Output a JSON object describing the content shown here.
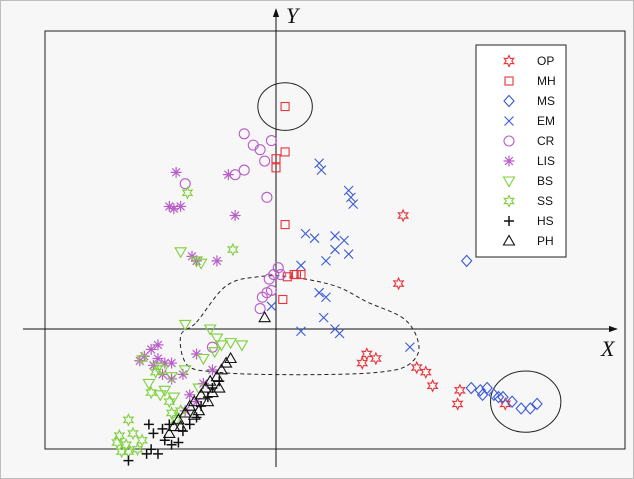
{
  "chart_data": {
    "type": "scatter",
    "title": "",
    "xlabel": "X",
    "ylabel": "Y",
    "xlim": [
      -10.5,
      12.5
    ],
    "ylim": [
      -6,
      14.5
    ],
    "grid": false,
    "legend_position": "top-right",
    "series": [
      {
        "name": "OP",
        "marker": "star6",
        "color": "#e8333a",
        "points": [
          [
            5.6,
            5.0
          ],
          [
            5.4,
            2.0
          ],
          [
            4.0,
            -1.1
          ],
          [
            4.4,
            -1.3
          ],
          [
            3.8,
            -1.5
          ],
          [
            6.2,
            -1.7
          ],
          [
            6.6,
            -1.9
          ],
          [
            6.9,
            -2.5
          ],
          [
            8.1,
            -2.7
          ],
          [
            10.1,
            -3.3
          ],
          [
            8.0,
            -3.3
          ]
        ]
      },
      {
        "name": "MH",
        "marker": "square",
        "color": "#e8333a",
        "points": [
          [
            0.4,
            9.8
          ],
          [
            0.0,
            7.5
          ],
          [
            0.4,
            7.8
          ],
          [
            0.0,
            7.1
          ],
          [
            0.4,
            4.6
          ],
          [
            0.5,
            2.3
          ],
          [
            0.9,
            2.4
          ],
          [
            0.8,
            2.4
          ],
          [
            1.1,
            2.4
          ],
          [
            0.3,
            1.3
          ]
        ]
      },
      {
        "name": "MS",
        "marker": "diamond",
        "color": "#3a5ad8",
        "points": [
          [
            8.4,
            3.0
          ],
          [
            8.6,
            -2.6
          ],
          [
            9.0,
            -2.7
          ],
          [
            9.3,
            -2.6
          ],
          [
            9.6,
            -2.9
          ],
          [
            10.0,
            -3.0
          ],
          [
            10.4,
            -3.2
          ],
          [
            10.8,
            -3.5
          ],
          [
            11.2,
            -3.5
          ],
          [
            11.5,
            -3.3
          ],
          [
            9.1,
            -2.9
          ],
          [
            9.8,
            -3.0
          ]
        ]
      },
      {
        "name": "EM",
        "marker": "x",
        "color": "#3a5ad8",
        "points": [
          [
            1.9,
            7.3
          ],
          [
            2.0,
            7.0
          ],
          [
            3.2,
            6.1
          ],
          [
            3.4,
            5.5
          ],
          [
            3.3,
            5.8
          ],
          [
            1.3,
            4.2
          ],
          [
            1.7,
            4.0
          ],
          [
            2.6,
            4.1
          ],
          [
            3.0,
            3.9
          ],
          [
            2.6,
            3.5
          ],
          [
            2.2,
            3.0
          ],
          [
            1.1,
            2.8
          ],
          [
            2.2,
            1.4
          ],
          [
            1.9,
            1.6
          ],
          [
            -0.2,
            1.0
          ],
          [
            2.1,
            0.5
          ],
          [
            2.6,
            0.0
          ],
          [
            1.1,
            -0.1
          ],
          [
            2.8,
            -0.2
          ],
          [
            5.9,
            -0.8
          ],
          [
            3.2,
            3.3
          ]
        ]
      },
      {
        "name": "CR",
        "marker": "circle",
        "color": "#b85ec8",
        "points": [
          [
            -1.4,
            8.6
          ],
          [
            -1.0,
            8.1
          ],
          [
            -0.2,
            8.3
          ],
          [
            -0.7,
            7.9
          ],
          [
            -0.5,
            7.4
          ],
          [
            -1.4,
            7.0
          ],
          [
            -1.8,
            6.8
          ],
          [
            -4.0,
            6.4
          ],
          [
            -0.4,
            5.8
          ],
          [
            0.1,
            2.7
          ],
          [
            -0.1,
            2.4
          ],
          [
            -0.3,
            2.2
          ],
          [
            -0.4,
            1.6
          ],
          [
            -0.2,
            1.7
          ],
          [
            -0.6,
            1.4
          ],
          [
            -0.7,
            0.9
          ],
          [
            -2.8,
            -0.8
          ],
          [
            0.2,
            2.4
          ]
        ]
      },
      {
        "name": "LIS",
        "marker": "asterisk",
        "color": "#b85ec8",
        "points": [
          [
            -4.4,
            6.9
          ],
          [
            -2.1,
            6.8
          ],
          [
            -4.7,
            5.4
          ],
          [
            -4.5,
            5.3
          ],
          [
            -4.2,
            5.4
          ],
          [
            -1.8,
            5.0
          ],
          [
            -3.7,
            3.2
          ],
          [
            -3.5,
            3.0
          ],
          [
            -2.6,
            3.0
          ],
          [
            -5.2,
            -0.7
          ],
          [
            -5.5,
            -0.9
          ],
          [
            -5.8,
            -1.2
          ],
          [
            -6.0,
            -1.4
          ],
          [
            -5.4,
            -1.6
          ],
          [
            -4.9,
            -1.5
          ],
          [
            -4.6,
            -1.5
          ],
          [
            -4.6,
            -2.2
          ],
          [
            -4.1,
            -2.0
          ],
          [
            -3.2,
            -2.4
          ],
          [
            -2.8,
            -1.8
          ],
          [
            -3.8,
            -2.9
          ],
          [
            -3.5,
            -3.2
          ],
          [
            -4.0,
            -3.6
          ],
          [
            -5.2,
            -1.3
          ],
          [
            -5.0,
            -2.0
          ],
          [
            -3.5,
            -1.1
          ]
        ]
      },
      {
        "name": "BS",
        "marker": "triangle-down",
        "color": "#7ed03c",
        "points": [
          [
            -4.2,
            3.4
          ],
          [
            -3.5,
            3.0
          ],
          [
            -3.3,
            2.9
          ],
          [
            -4.0,
            0.2
          ],
          [
            -2.9,
            0.0
          ],
          [
            -2.6,
            -0.4
          ],
          [
            -2.4,
            -0.7
          ],
          [
            -2.0,
            -0.6
          ],
          [
            -2.7,
            -1.0
          ],
          [
            -3.2,
            -1.3
          ],
          [
            -1.5,
            -0.7
          ],
          [
            -5.2,
            -1.7
          ],
          [
            -5.0,
            -1.8
          ],
          [
            -4.6,
            -2.1
          ],
          [
            -4.0,
            -1.8
          ],
          [
            -5.6,
            -2.4
          ],
          [
            -4.9,
            -2.7
          ],
          [
            -5.1,
            -2.9
          ],
          [
            -4.5,
            -3.0
          ],
          [
            -3.4,
            -2.6
          ]
        ]
      },
      {
        "name": "SS",
        "marker": "star6",
        "color": "#7ed03c",
        "points": [
          [
            -3.9,
            6.0
          ],
          [
            -1.9,
            3.5
          ],
          [
            -5.9,
            -1.3
          ],
          [
            -5.3,
            -1.9
          ],
          [
            -5.5,
            -2.8
          ],
          [
            -4.7,
            -3.2
          ],
          [
            -4.2,
            -3.6
          ],
          [
            -4.4,
            -4.0
          ],
          [
            -6.5,
            -4.0
          ],
          [
            -6.3,
            -4.6
          ],
          [
            -6.9,
            -4.7
          ],
          [
            -7.0,
            -5.0
          ],
          [
            -6.6,
            -5.1
          ],
          [
            -6.8,
            -5.4
          ],
          [
            -6.5,
            -5.4
          ],
          [
            -6.1,
            -5.3
          ],
          [
            -5.9,
            -4.9
          ],
          [
            -4.6,
            -3.7
          ]
        ]
      },
      {
        "name": "HS",
        "marker": "plus",
        "color": "#111111",
        "points": [
          [
            -5.6,
            -4.2
          ],
          [
            -5.4,
            -4.6
          ],
          [
            -5.0,
            -4.4
          ],
          [
            -4.9,
            -4.9
          ],
          [
            -4.6,
            -5.1
          ],
          [
            -4.3,
            -5.0
          ],
          [
            -5.5,
            -5.3
          ],
          [
            -5.2,
            -5.5
          ],
          [
            -4.1,
            -4.5
          ],
          [
            -3.8,
            -4.2
          ],
          [
            -3.5,
            -3.9
          ],
          [
            -3.3,
            -3.4
          ],
          [
            -3.0,
            -3.0
          ],
          [
            -2.8,
            -2.6
          ],
          [
            -2.5,
            -2.3
          ],
          [
            -5.7,
            -5.5
          ],
          [
            -6.5,
            -5.8
          ],
          [
            -4.7,
            -4.2
          ]
        ]
      },
      {
        "name": "PH",
        "marker": "triangle-up",
        "color": "#111111",
        "points": [
          [
            -0.5,
            0.5
          ],
          [
            -4.5,
            -4.3
          ],
          [
            -4.3,
            -4.0
          ],
          [
            -4.0,
            -3.7
          ],
          [
            -3.8,
            -3.4
          ],
          [
            -3.6,
            -3.2
          ],
          [
            -3.3,
            -2.9
          ],
          [
            -3.1,
            -2.6
          ],
          [
            -2.9,
            -2.3
          ],
          [
            -2.6,
            -2.1
          ],
          [
            -2.4,
            -1.8
          ],
          [
            -2.2,
            -1.5
          ],
          [
            -2.0,
            -1.3
          ],
          [
            -4.7,
            -4.6
          ],
          [
            -4.2,
            -4.3
          ],
          [
            -3.4,
            -3.6
          ],
          [
            -2.8,
            -2.8
          ],
          [
            -3.0,
            -3.2
          ],
          [
            -2.5,
            -2.6
          ],
          [
            -3.6,
            -3.8
          ]
        ]
      }
    ],
    "annotations": [
      {
        "kind": "ellipse",
        "center": [
          0.4,
          9.8
        ],
        "radius": [
          1.2,
          1.05
        ],
        "stroke": "#222222"
      },
      {
        "kind": "ellipse",
        "center": [
          11.0,
          -3.2
        ],
        "radius": [
          1.55,
          1.35
        ],
        "stroke": "#222222"
      },
      {
        "kind": "dashed-region",
        "stroke": "#222222",
        "points": [
          [
            -3.5,
            0.3
          ],
          [
            -2.2,
            1.9
          ],
          [
            -0.8,
            2.3
          ],
          [
            0.6,
            2.3
          ],
          [
            2.6,
            1.9
          ],
          [
            4.0,
            1.2
          ],
          [
            5.7,
            0.4
          ],
          [
            6.3,
            -0.8
          ],
          [
            5.8,
            -1.6
          ],
          [
            4.6,
            -1.9
          ],
          [
            2.5,
            -2.0
          ],
          [
            -0.6,
            -2.0
          ],
          [
            -2.6,
            -1.9
          ],
          [
            -3.9,
            -1.6
          ],
          [
            -4.2,
            -0.3
          ]
        ]
      }
    ]
  }
}
